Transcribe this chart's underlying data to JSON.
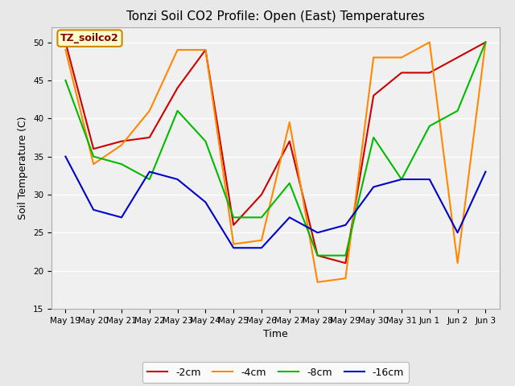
{
  "title": "Tonzi Soil CO2 Profile: Open (East) Temperatures",
  "xlabel": "Time",
  "ylabel": "Soil Temperature (C)",
  "legend_label": "TZ_soilco2",
  "ylim": [
    15,
    52
  ],
  "yticks": [
    15,
    20,
    25,
    30,
    35,
    40,
    45,
    50
  ],
  "x_labels": [
    "May 19",
    "May 20",
    "May 21",
    "May 22",
    "May 23",
    "May 24",
    "May 25",
    "May 26",
    "May 27",
    "May 28",
    "May 29",
    "May 30",
    "May 31",
    "Jun 1",
    "Jun 2",
    "Jun 3"
  ],
  "series": {
    "-2cm": {
      "color": "#cc0000",
      "values": [
        50,
        36,
        37,
        37.5,
        44,
        49,
        26,
        30,
        37,
        22,
        21,
        43,
        46,
        46,
        48,
        50
      ]
    },
    "-4cm": {
      "color": "#ff8800",
      "values": [
        49,
        34,
        36.5,
        41,
        49,
        49,
        23.5,
        24,
        39.5,
        18.5,
        19,
        48,
        48,
        50,
        21,
        50
      ]
    },
    "-8cm": {
      "color": "#00bb00",
      "values": [
        45,
        35,
        34,
        32,
        41,
        37,
        27,
        27,
        31.5,
        22,
        22,
        37.5,
        32,
        39,
        41,
        50
      ]
    },
    "-16cm": {
      "color": "#0000cc",
      "values": [
        35,
        28,
        27,
        33,
        32,
        29,
        23,
        23,
        27,
        25,
        26,
        31,
        32,
        32,
        25,
        33
      ]
    }
  },
  "bg_color": "#e8e8e8",
  "plot_bg_color": "#f0f0f0",
  "grid_color": "#ffffff",
  "title_fontsize": 11,
  "axis_fontsize": 9,
  "tick_fontsize": 7.5,
  "legend_box_color": "#ffffcc",
  "legend_text_color": "#880000",
  "legend_border_color": "#cc8800"
}
